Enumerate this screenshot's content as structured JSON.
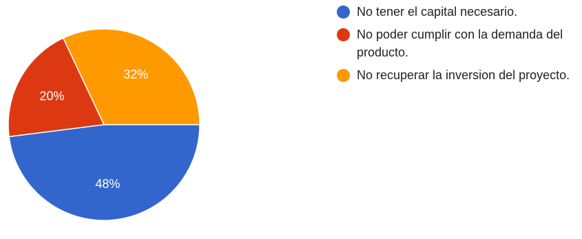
{
  "chart_data": {
    "type": "pie",
    "series": [
      {
        "name": "No tener el capital necesario.",
        "value": 48,
        "label": "48%",
        "color": "#3366cc"
      },
      {
        "name": "No poder cumplir con la demanda del producto.",
        "value": 20,
        "label": "20%",
        "color": "#dc3912"
      },
      {
        "name": "No recuperar la inversion del proyecto.",
        "value": 32,
        "label": "32%",
        "color": "#ff9900"
      }
    ],
    "legend_position": "right"
  }
}
